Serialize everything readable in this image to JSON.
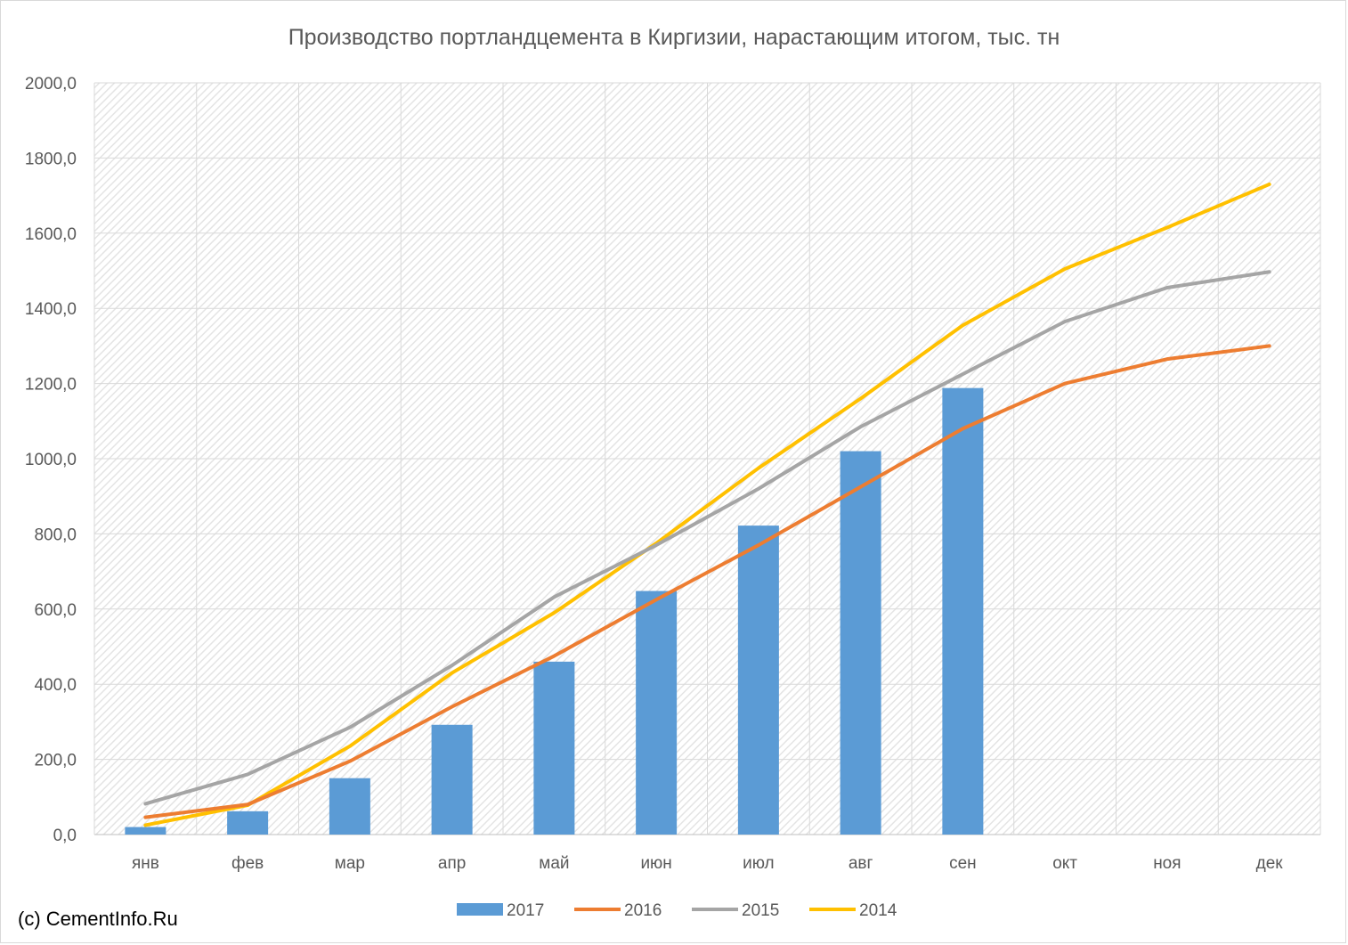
{
  "chart_data": {
    "type": "bar",
    "title": "Производство портландцемента в Киргизии, нарастающим итогом, тыс. тн",
    "categories": [
      "янв",
      "фев",
      "мар",
      "апр",
      "май",
      "июн",
      "июл",
      "авг",
      "сен",
      "окт",
      "ноя",
      "дек"
    ],
    "ylim": [
      0,
      2000
    ],
    "ytick_labels": [
      "0,0",
      "200,0",
      "400,0",
      "600,0",
      "800,0",
      "1000,0",
      "1200,0",
      "1400,0",
      "1600,0",
      "1800,0",
      "2000,0"
    ],
    "grid": true,
    "legend_position": "bottom",
    "series": [
      {
        "name": "2017",
        "type": "bar",
        "color": "#5b9bd5",
        "values": [
          20,
          62,
          150,
          292,
          460,
          648,
          822,
          1020,
          1188,
          null,
          null,
          null
        ]
      },
      {
        "name": "2016",
        "type": "line",
        "color": "#ed7d31",
        "values": [
          46,
          80,
          195,
          340,
          475,
          625,
          770,
          925,
          1080,
          1200,
          1265,
          1300
        ]
      },
      {
        "name": "2015",
        "type": "line",
        "color": "#a5a5a5",
        "values": [
          82,
          160,
          285,
          450,
          632,
          770,
          920,
          1085,
          1225,
          1365,
          1455,
          1497
        ]
      },
      {
        "name": "2014",
        "type": "line",
        "color": "#ffc000",
        "values": [
          25,
          78,
          235,
          430,
          590,
          775,
          975,
          1160,
          1355,
          1505,
          1615,
          1730
        ]
      }
    ]
  },
  "footer": {
    "credit": "(c) CementInfo.Ru"
  }
}
